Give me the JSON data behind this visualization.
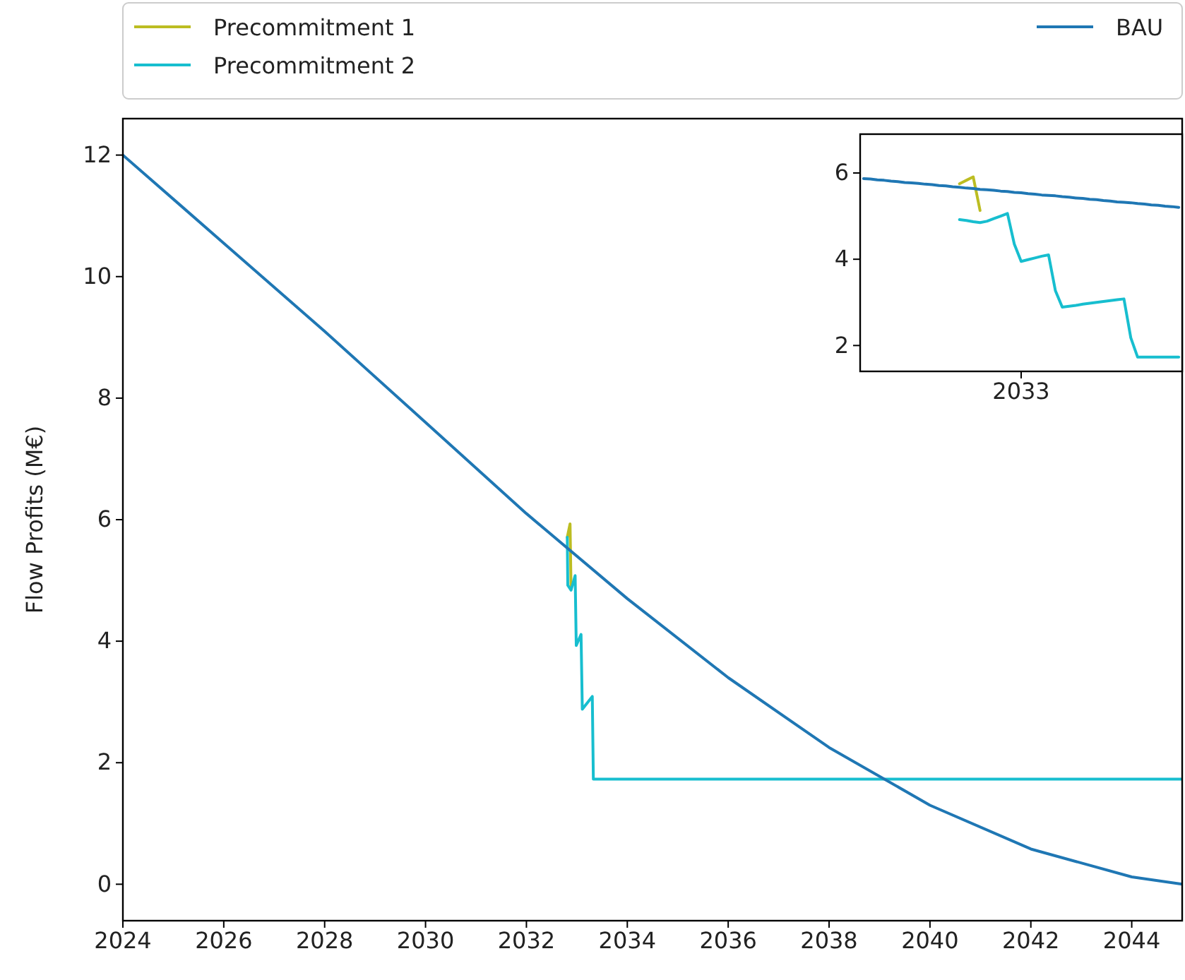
{
  "chart_data": [
    {
      "type": "line",
      "ylabel": "Flow Profits (M€)",
      "xlim": [
        2024,
        2045
      ],
      "xticks": [
        2024,
        2026,
        2028,
        2030,
        2032,
        2034,
        2036,
        2038,
        2040,
        2042,
        2044
      ],
      "ylim": [
        -0.6,
        12.6
      ],
      "yticks": [
        0,
        2,
        4,
        6,
        8,
        10,
        12
      ],
      "legend": "top",
      "grid": false,
      "series": [
        {
          "name": "Precommitment 1",
          "color": "#bcbd22",
          "x": [
            2032.81,
            2032.865,
            2032.885
          ],
          "values": [
            5.71,
            5.93,
            4.86
          ]
        },
        {
          "name": "Precommitment 2",
          "color": "#17becf",
          "x": [
            2032.81,
            2032.82,
            2032.885,
            2032.966,
            2032.988,
            2033.083,
            2033.108,
            2033.306,
            2033.327,
            2045
          ],
          "values": [
            5.71,
            4.92,
            4.84,
            5.08,
            3.93,
            4.11,
            2.88,
            3.09,
            1.73,
            1.73
          ]
        },
        {
          "name": "BAU",
          "color": "#1f77b4",
          "x": [
            2024,
            2026,
            2028,
            2030,
            2032,
            2034,
            2036,
            2038,
            2040,
            2042,
            2044,
            2045
          ],
          "values": [
            12,
            10.55,
            9.1,
            7.6,
            6.1,
            4.7,
            3.4,
            2.25,
            1.3,
            0.58,
            0.12,
            0
          ]
        }
      ]
    },
    {
      "type": "line",
      "categories": [
        null,
        null,
        null,
        null,
        null,
        null,
        null,
        null,
        null,
        null,
        null,
        null,
        null,
        null,
        null,
        null,
        null,
        null,
        null,
        null,
        null,
        null,
        null,
        "2033",
        null,
        null,
        null,
        null,
        null,
        null,
        null,
        null,
        null,
        null,
        null,
        null,
        null,
        null,
        null,
        null,
        null,
        null,
        null,
        null,
        null,
        null,
        null
      ],
      "ylim": [
        1.4,
        6.9
      ],
      "yticks": [
        2,
        4,
        6
      ],
      "grid": false,
      "series": [
        {
          "color": "#bcbd22",
          "values": [
            null,
            null,
            null,
            null,
            null,
            null,
            null,
            null,
            null,
            null,
            null,
            null,
            null,
            null,
            5.75,
            5.83,
            5.91,
            5.13,
            null,
            null,
            null,
            null,
            null,
            null,
            null,
            null,
            null,
            null,
            null,
            null,
            null,
            null,
            null,
            null,
            null,
            null,
            null,
            null,
            null,
            null,
            null,
            null,
            null,
            null,
            null,
            null,
            null
          ]
        },
        {
          "color": "#17becf",
          "values": [
            null,
            null,
            null,
            null,
            null,
            null,
            null,
            null,
            null,
            null,
            null,
            null,
            null,
            null,
            4.92,
            4.9,
            4.87,
            4.85,
            4.88,
            4.94,
            5.0,
            5.06,
            4.35,
            3.95,
            3.99,
            4.03,
            4.07,
            4.1,
            3.27,
            2.89,
            2.91,
            2.93,
            2.96,
            2.98,
            3.0,
            3.02,
            3.04,
            3.06,
            3.08,
            2.18,
            1.73,
            1.73,
            1.73,
            1.73,
            1.73,
            1.73,
            1.73
          ]
        },
        {
          "color": "#1f77b4",
          "values": [
            5.87,
            5.86,
            5.84,
            5.83,
            5.81,
            5.8,
            5.78,
            5.77,
            5.76,
            5.74,
            5.73,
            5.71,
            5.7,
            5.68,
            5.67,
            5.65,
            5.64,
            5.62,
            5.61,
            5.6,
            5.58,
            5.57,
            5.55,
            5.54,
            5.52,
            5.51,
            5.49,
            5.48,
            5.47,
            5.45,
            5.44,
            5.42,
            5.41,
            5.39,
            5.38,
            5.36,
            5.35,
            5.33,
            5.32,
            5.31,
            5.29,
            5.28,
            5.26,
            5.25,
            5.23,
            5.22,
            5.2
          ]
        }
      ]
    }
  ]
}
